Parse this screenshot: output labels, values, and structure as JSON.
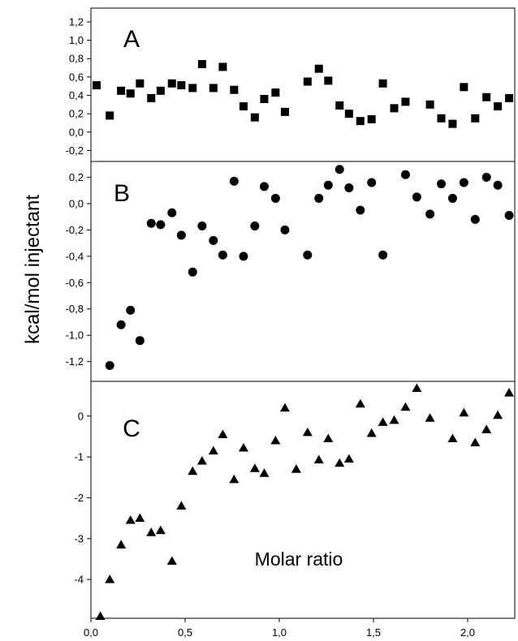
{
  "chart_data": {
    "type": "scatter",
    "ylabel": "kcal/mol injectant",
    "x_ticks": [
      "0,0",
      "0,5",
      "1,0",
      "1,5",
      "2,0"
    ],
    "x_tick_values": [
      0,
      0.5,
      1.0,
      1.5,
      2.0
    ],
    "xlim": [
      0,
      2.25
    ],
    "panels": [
      {
        "label": "A",
        "marker": "square",
        "ylim": [
          -0.32,
          1.35
        ],
        "y_ticks": [
          "1,2",
          "1,0",
          "0,8",
          "0,6",
          "0,4",
          "0,2",
          "0,0",
          "-0,2"
        ],
        "y_tick_values": [
          1.2,
          1.0,
          0.8,
          0.6,
          0.4,
          0.2,
          0.0,
          -0.2
        ],
        "x": [
          0.03,
          0.1,
          0.16,
          0.21,
          0.26,
          0.32,
          0.37,
          0.43,
          0.48,
          0.54,
          0.59,
          0.65,
          0.7,
          0.76,
          0.81,
          0.87,
          0.92,
          0.98,
          1.03,
          1.15,
          1.21,
          1.26,
          1.32,
          1.37,
          1.43,
          1.49,
          1.55,
          1.61,
          1.67,
          1.8,
          1.86,
          1.92,
          1.98,
          2.04,
          2.1,
          2.16,
          2.22
        ],
        "y": [
          0.51,
          0.18,
          0.45,
          0.42,
          0.53,
          0.37,
          0.45,
          0.53,
          0.51,
          0.48,
          0.74,
          0.48,
          0.71,
          0.46,
          0.28,
          0.16,
          0.36,
          0.43,
          0.22,
          0.55,
          0.69,
          0.56,
          0.29,
          0.2,
          0.12,
          0.14,
          0.53,
          0.26,
          0.33,
          0.3,
          0.15,
          0.09,
          0.49,
          0.15,
          0.38,
          0.28,
          0.37
        ]
      },
      {
        "label": "B",
        "marker": "circle",
        "ylim": [
          -1.35,
          0.32
        ],
        "y_ticks": [
          "0,2",
          "0,0",
          "-0,2",
          "-0,4",
          "-0,6",
          "-0,8",
          "-1,0",
          "-1,2"
        ],
        "y_tick_values": [
          0.2,
          0.0,
          -0.2,
          -0.4,
          -0.6,
          -0.8,
          -1.0,
          -1.2
        ],
        "x": [
          0.1,
          0.16,
          0.21,
          0.26,
          0.32,
          0.37,
          0.43,
          0.48,
          0.54,
          0.59,
          0.65,
          0.7,
          0.76,
          0.81,
          0.87,
          0.92,
          0.98,
          1.03,
          1.15,
          1.21,
          1.26,
          1.32,
          1.37,
          1.43,
          1.49,
          1.55,
          1.67,
          1.73,
          1.8,
          1.86,
          1.92,
          1.98,
          2.04,
          2.1,
          2.16,
          2.22
        ],
        "y": [
          -1.23,
          -0.92,
          -0.81,
          -1.04,
          -0.15,
          -0.16,
          -0.07,
          -0.24,
          -0.52,
          -0.17,
          -0.28,
          -0.39,
          0.17,
          -0.4,
          -0.17,
          0.13,
          0.04,
          -0.2,
          -0.39,
          0.04,
          0.14,
          0.26,
          0.12,
          -0.05,
          0.16,
          -0.39,
          0.22,
          0.05,
          -0.08,
          0.15,
          0.04,
          0.16,
          -0.12,
          0.2,
          0.14,
          -0.09
        ]
      },
      {
        "label": "C",
        "marker": "triangle",
        "ylim": [
          -4.95,
          0.85
        ],
        "y_ticks": [
          "0",
          "-1",
          "-2",
          "-3",
          "-4"
        ],
        "y_tick_values": [
          0,
          -1,
          -2,
          -3,
          -4
        ],
        "x": [
          0.05,
          0.1,
          0.16,
          0.21,
          0.26,
          0.32,
          0.37,
          0.43,
          0.48,
          0.54,
          0.59,
          0.65,
          0.7,
          0.76,
          0.81,
          0.87,
          0.92,
          0.98,
          1.03,
          1.09,
          1.15,
          1.21,
          1.26,
          1.32,
          1.37,
          1.43,
          1.49,
          1.55,
          1.61,
          1.67,
          1.73,
          1.8,
          1.92,
          1.98,
          2.04,
          2.1,
          2.16,
          2.22
        ],
        "y": [
          -4.9,
          -4.0,
          -3.15,
          -2.55,
          -2.5,
          -2.85,
          -2.8,
          -3.55,
          -2.2,
          -1.35,
          -1.1,
          -0.85,
          -0.45,
          -1.55,
          -0.78,
          -1.28,
          -1.4,
          -0.6,
          0.2,
          -1.3,
          -0.4,
          -1.07,
          -0.55,
          -1.15,
          -1.05,
          0.3,
          -0.42,
          -0.15,
          -0.1,
          0.22,
          0.68,
          -0.05,
          -0.55,
          0.08,
          -0.65,
          -0.33,
          0.02,
          0.57
        ]
      }
    ],
    "annotation": "Molar ratio"
  }
}
